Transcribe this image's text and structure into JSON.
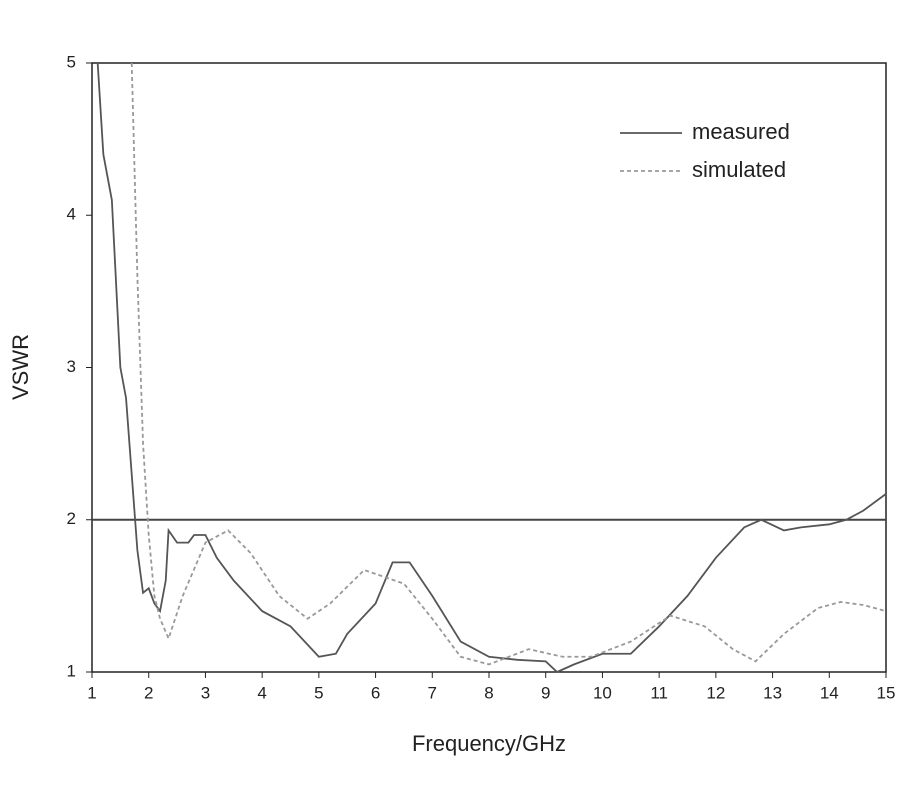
{
  "chart_data": {
    "type": "line",
    "xlabel": "Frequency/GHz",
    "ylabel": "VSWR",
    "xlim": [
      1,
      15
    ],
    "ylim": [
      1,
      5
    ],
    "xticks": [
      1,
      2,
      3,
      4,
      5,
      6,
      7,
      8,
      9,
      10,
      11,
      12,
      13,
      14,
      15
    ],
    "yticks": [
      1,
      2,
      3,
      4,
      5
    ],
    "reference_line": 2,
    "legend": "upper right",
    "series": [
      {
        "name": "measured",
        "color": "#555555",
        "dashed": false,
        "x": [
          1.1,
          1.2,
          1.35,
          1.5,
          1.6,
          1.7,
          1.8,
          1.9,
          2.0,
          2.1,
          2.2,
          2.3,
          2.35,
          2.5,
          2.7,
          2.8,
          3.0,
          3.2,
          3.5,
          4.0,
          4.5,
          5.0,
          5.3,
          5.5,
          6.0,
          6.3,
          6.6,
          7.0,
          7.5,
          8.0,
          8.5,
          9.0,
          9.2,
          9.5,
          10.0,
          10.5,
          11.0,
          11.5,
          12.0,
          12.5,
          12.8,
          13.2,
          13.5,
          14.0,
          14.3,
          14.6,
          15.0
        ],
        "values": [
          5,
          4.4,
          4.1,
          3.0,
          2.8,
          2.3,
          1.8,
          1.52,
          1.55,
          1.45,
          1.4,
          1.6,
          1.93,
          1.85,
          1.85,
          1.9,
          1.9,
          1.75,
          1.6,
          1.4,
          1.3,
          1.1,
          1.12,
          1.25,
          1.45,
          1.72,
          1.72,
          1.5,
          1.2,
          1.1,
          1.08,
          1.07,
          1.0,
          1.05,
          1.12,
          1.12,
          1.3,
          1.5,
          1.75,
          1.95,
          2.0,
          1.93,
          1.95,
          1.97,
          2.0,
          2.06,
          2.17
        ]
      },
      {
        "name": "simulated",
        "color": "#999999",
        "dashed": true,
        "x": [
          1.7,
          1.8,
          1.9,
          2.0,
          2.1,
          2.2,
          2.35,
          2.6,
          3.0,
          3.4,
          3.8,
          4.3,
          4.8,
          5.2,
          5.8,
          6.5,
          7.0,
          7.5,
          8.0,
          8.7,
          9.3,
          9.8,
          10.5,
          11.2,
          11.8,
          12.3,
          12.7,
          13.2,
          13.8,
          14.2,
          14.6,
          15.0
        ],
        "values": [
          5,
          3.6,
          2.5,
          1.9,
          1.5,
          1.35,
          1.22,
          1.5,
          1.85,
          1.93,
          1.78,
          1.5,
          1.35,
          1.45,
          1.67,
          1.58,
          1.35,
          1.1,
          1.05,
          1.15,
          1.1,
          1.1,
          1.2,
          1.37,
          1.3,
          1.15,
          1.07,
          1.25,
          1.42,
          1.46,
          1.44,
          1.4
        ]
      }
    ]
  }
}
